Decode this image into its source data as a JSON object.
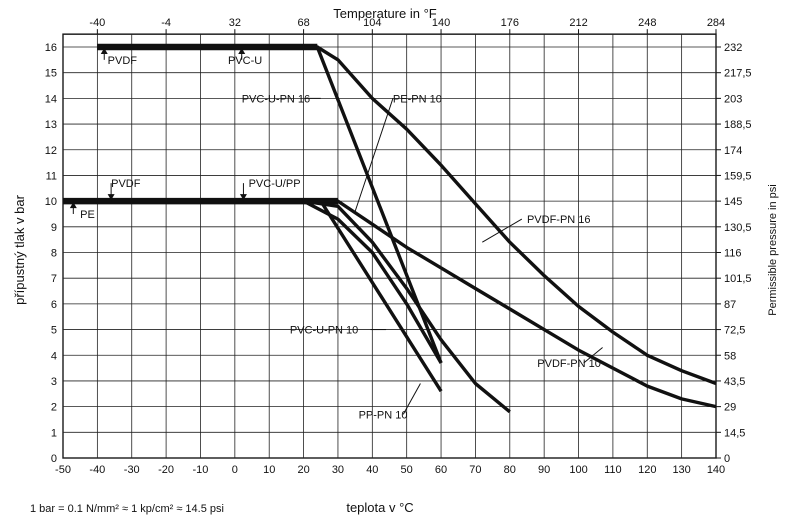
{
  "chart_data": {
    "type": "line",
    "title": "",
    "xlabel": "teplota v °C",
    "ylabel": "přípustný tlak v bar",
    "x2label": "Temperature in °F",
    "y2label": "Permissible pressure in psi",
    "xlim": [
      -50,
      140
    ],
    "ylim": [
      0,
      16.5
    ],
    "x_ticks": [
      -50,
      -40,
      -30,
      -20,
      -10,
      0,
      10,
      20,
      30,
      40,
      50,
      60,
      70,
      80,
      90,
      100,
      110,
      120,
      130,
      140
    ],
    "x_tick_labels": [
      "-50",
      "-40",
      "-30",
      "-20",
      "-10",
      "0",
      "10",
      "20",
      "30",
      "40",
      "50",
      "60",
      "70",
      "80",
      "90",
      "100",
      "110",
      "120",
      "130",
      "140"
    ],
    "y_ticks": [
      0,
      1,
      2,
      3,
      4,
      5,
      6,
      7,
      8,
      9,
      10,
      11,
      12,
      13,
      14,
      15,
      16
    ],
    "y_tick_labels": [
      "0",
      "1",
      "2",
      "3",
      "4",
      "5",
      "6",
      "7",
      "8",
      "9",
      "10",
      "11",
      "12",
      "13",
      "14",
      "15",
      "16"
    ],
    "x2_ticks": [
      {
        "label": "-40",
        "c": -40
      },
      {
        "label": "-4",
        "c": -20
      },
      {
        "label": "32",
        "c": 0
      },
      {
        "label": "68",
        "c": 20
      },
      {
        "label": "104",
        "c": 40
      },
      {
        "label": "140",
        "c": 60
      },
      {
        "label": "176",
        "c": 80
      },
      {
        "label": "212",
        "c": 100
      },
      {
        "label": "248",
        "c": 120
      },
      {
        "label": "284",
        "c": 140
      }
    ],
    "y2_ticks": [
      {
        "label": "0",
        "bar": 0
      },
      {
        "label": "14,5",
        "bar": 1
      },
      {
        "label": "29",
        "bar": 2
      },
      {
        "label": "43,5",
        "bar": 3
      },
      {
        "label": "58",
        "bar": 4
      },
      {
        "label": "72,5",
        "bar": 5
      },
      {
        "label": "87",
        "bar": 6
      },
      {
        "label": "101,5",
        "bar": 7
      },
      {
        "label": "116",
        "bar": 8
      },
      {
        "label": "130,5",
        "bar": 9
      },
      {
        "label": "145",
        "bar": 10
      },
      {
        "label": "159,5",
        "bar": 11
      },
      {
        "label": "174",
        "bar": 12
      },
      {
        "label": "188,5",
        "bar": 13
      },
      {
        "label": "203",
        "bar": 14
      },
      {
        "label": "217,5",
        "bar": 15
      },
      {
        "label": "232",
        "bar": 16
      }
    ],
    "grid": true,
    "series": [
      {
        "name": "PVC-U-PN 16",
        "x": [
          -40,
          24,
          60
        ],
        "y": [
          16,
          16,
          3.7
        ]
      },
      {
        "name": "PVDF-PN 16",
        "x": [
          24,
          30,
          40,
          50,
          60,
          70,
          80,
          90,
          100,
          110,
          120,
          130,
          140
        ],
        "y": [
          16,
          15.5,
          14.0,
          12.8,
          11.4,
          9.9,
          8.4,
          7.1,
          5.9,
          4.9,
          4.0,
          3.4,
          2.9
        ]
      },
      {
        "name": "PVC-U-PN 10",
        "x": [
          -40,
          25,
          60
        ],
        "y": [
          10,
          10,
          2.6
        ]
      },
      {
        "name": "PE-PN 10",
        "x": [
          -50,
          20,
          30,
          40,
          50,
          60
        ],
        "y": [
          10,
          10,
          9.3,
          8.0,
          6.0,
          3.7
        ]
      },
      {
        "name": "PP-PN 10",
        "x": [
          20,
          30,
          40,
          50,
          60,
          70,
          80
        ],
        "y": [
          10,
          9.8,
          8.4,
          6.6,
          4.6,
          2.9,
          1.8
        ]
      },
      {
        "name": "PVDF-PN 10",
        "x": [
          24,
          30,
          40,
          50,
          60,
          70,
          80,
          90,
          100,
          110,
          120,
          130,
          140
        ],
        "y": [
          10,
          10,
          9.1,
          8.2,
          7.4,
          6.6,
          5.8,
          5.0,
          4.2,
          3.5,
          2.8,
          2.3,
          2.0
        ]
      }
    ],
    "annotations": [
      {
        "text": "PVDF",
        "x": -37,
        "y": 15.5
      },
      {
        "text": "PVC-U",
        "x": -2,
        "y": 15.5
      },
      {
        "text": "PVC-U-PN 16",
        "x": 2,
        "y": 14
      },
      {
        "text": "PE-PN 10",
        "x": 46,
        "y": 14
      },
      {
        "text": "PVDF",
        "x": -36,
        "y": 10.7
      },
      {
        "text": "PVC-U/PP",
        "x": 4,
        "y": 10.7
      },
      {
        "text": "PE",
        "x": -45,
        "y": 9.5
      },
      {
        "text": "PVDF-PN 16",
        "x": 85,
        "y": 9.3
      },
      {
        "text": "PVC-U-PN 10",
        "x": 16,
        "y": 5
      },
      {
        "text": "PVDF-PN 10",
        "x": 88,
        "y": 3.7
      },
      {
        "text": "PP-PN 10",
        "x": 36,
        "y": 1.7
      }
    ]
  },
  "footnote": "1 bar = 0.1 N/mm² ≈ 1 kp/cm² ≈ 14.5 psi"
}
